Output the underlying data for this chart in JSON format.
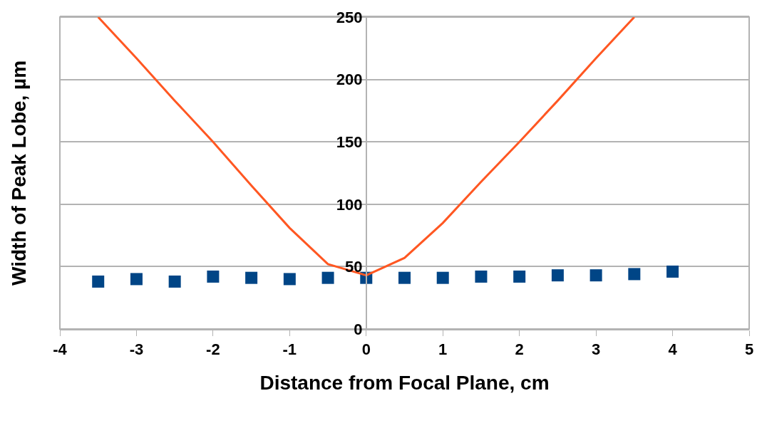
{
  "chart_data": {
    "type": "scatter",
    "xlabel": "Distance from Focal Plane, cm",
    "ylabel": "Width of Peak Lobe, µm",
    "xlim": [
      -4,
      5
    ],
    "xticks": [
      -4,
      -3,
      -2,
      -1,
      0,
      1,
      2,
      3,
      4,
      5
    ],
    "ylim": [
      0,
      250
    ],
    "yticks": [
      0,
      50,
      100,
      150,
      200,
      250
    ],
    "grid": "y",
    "series": [
      {
        "type": "line",
        "color": "#ff5722",
        "marker": "none",
        "line_style": "solid",
        "x": [
          -3.5,
          -3,
          -2.5,
          -2,
          -1.5,
          -1,
          -0.5,
          0,
          0.5,
          1,
          1.5,
          2,
          2.5,
          3,
          3.5
        ],
        "values": [
          250,
          217,
          183,
          150,
          115,
          81,
          52,
          43,
          57,
          85,
          118,
          150,
          183,
          217,
          250
        ]
      },
      {
        "color": "#004586",
        "marker": "square",
        "x": [
          -3.5,
          -3,
          -2.5,
          -2,
          -1.5,
          -1,
          -0.5,
          0,
          0.5,
          1,
          1.5,
          2,
          2.5,
          3,
          3.5,
          4
        ],
        "values": [
          38,
          40,
          38,
          42,
          41,
          40,
          41,
          41,
          41,
          41,
          42,
          42,
          43,
          43,
          44,
          46
        ]
      }
    ]
  }
}
